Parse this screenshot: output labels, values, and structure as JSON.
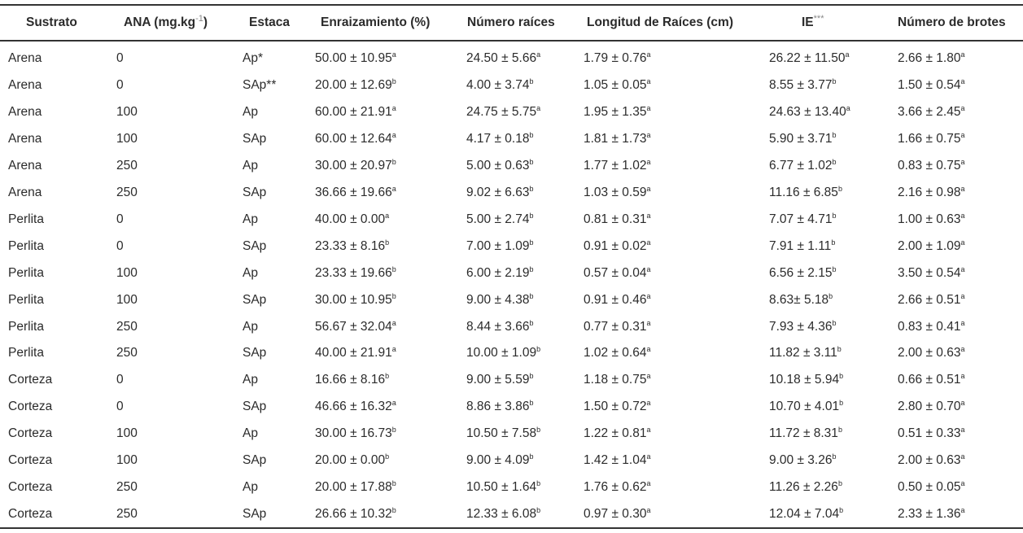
{
  "table": {
    "header": [
      "Sustrato",
      {
        "text": "ANA (mg.kg",
        "sup": "-1",
        "after": ")"
      },
      "Estaca",
      "Enraizamiento (%)",
      "Número raíces",
      "Longitud de Raíces (cm)",
      {
        "text": "IE",
        "sup": "***"
      },
      "Número de brotes"
    ],
    "rows": [
      [
        "Arena",
        "0",
        "Ap*",
        {
          "text": "50.00 ± 10.95",
          "sup": "a"
        },
        {
          "text": "24.50 ± 5.66",
          "sup": "a"
        },
        {
          "text": "1.79 ± 0.76",
          "sup": "a"
        },
        {
          "text": "26.22 ± 11.50",
          "sup": "a"
        },
        {
          "text": "2.66 ± 1.80",
          "sup": "a"
        }
      ],
      [
        "Arena",
        "0",
        "SAp**",
        {
          "text": "20.00 ± 12.69",
          "sup": "b"
        },
        {
          "text": "4.00 ± 3.74",
          "sup": "b"
        },
        {
          "text": "1.05 ± 0.05",
          "sup": "a"
        },
        {
          "text": "8.55 ± 3.77",
          "sup": "b"
        },
        {
          "text": "1.50 ± 0.54",
          "sup": "a"
        }
      ],
      [
        "Arena",
        "100",
        "Ap",
        {
          "text": "60.00 ± 21.91",
          "sup": "a"
        },
        {
          "text": "24.75 ± 5.75",
          "sup": "a"
        },
        {
          "text": "1.95 ± 1.35",
          "sup": "a"
        },
        {
          "text": "24.63 ± 13.40",
          "sup": "a"
        },
        {
          "text": "3.66 ± 2.45",
          "sup": "a"
        }
      ],
      [
        "Arena",
        "100",
        "SAp",
        {
          "text": "60.00 ± 12.64",
          "sup": "a"
        },
        {
          "text": "4.17 ± 0.18",
          "sup": "b"
        },
        {
          "text": "1.81 ± 1.73",
          "sup": "a"
        },
        {
          "text": "5.90 ± 3.71",
          "sup": "b"
        },
        {
          "text": "1.66 ± 0.75",
          "sup": "a"
        }
      ],
      [
        "Arena",
        "250",
        "Ap",
        {
          "text": "30.00 ± 20.97",
          "sup": "b"
        },
        {
          "text": "5.00 ± 0.63",
          "sup": "b"
        },
        {
          "text": "1.77 ± 1.02",
          "sup": "a"
        },
        {
          "text": "6.77 ± 1.02",
          "sup": "b"
        },
        {
          "text": "0.83 ± 0.75",
          "sup": "a"
        }
      ],
      [
        "Arena",
        "250",
        "SAp",
        {
          "text": "36.66 ± 19.66",
          "sup": "a"
        },
        {
          "text": "9.02 ± 6.63",
          "sup": "b"
        },
        {
          "text": "1.03 ± 0.59",
          "sup": "a"
        },
        {
          "text": "11.16 ± 6.85",
          "sup": "b"
        },
        {
          "text": "2.16 ± 0.98",
          "sup": "a"
        }
      ],
      [
        "Perlita",
        "0",
        "Ap",
        {
          "text": "40.00 ± 0.00",
          "sup": "a"
        },
        {
          "text": "5.00 ± 2.74",
          "sup": "b"
        },
        {
          "text": "0.81 ± 0.31",
          "sup": "a"
        },
        {
          "text": "7.07 ± 4.71",
          "sup": "b"
        },
        {
          "text": "1.00 ± 0.63",
          "sup": "a"
        }
      ],
      [
        "Perlita",
        "0",
        "SAp",
        {
          "text": "23.33 ± 8.16",
          "sup": "b"
        },
        {
          "text": "7.00 ± 1.09",
          "sup": "b"
        },
        {
          "text": "0.91 ± 0.02",
          "sup": "a"
        },
        {
          "text": "7.91 ± 1.11",
          "sup": "b"
        },
        {
          "text": "2.00 ± 1.09",
          "sup": "a"
        }
      ],
      [
        "Perlita",
        "100",
        "Ap",
        {
          "text": "23.33 ± 19.66",
          "sup": "b"
        },
        {
          "text": "6.00 ± 2.19",
          "sup": "b"
        },
        {
          "text": "0.57 ± 0.04",
          "sup": "a"
        },
        {
          "text": "6.56 ± 2.15",
          "sup": "b"
        },
        {
          "text": "3.50 ± 0.54",
          "sup": "a"
        }
      ],
      [
        "Perlita",
        "100",
        "SAp",
        {
          "text": "30.00 ± 10.95",
          "sup": "b"
        },
        {
          "text": "9.00 ± 4.38",
          "sup": "b"
        },
        {
          "text": "0.91 ± 0.46",
          "sup": "a"
        },
        {
          "text": "8.63± 5.18",
          "sup": "b"
        },
        {
          "text": "2.66 ± 0.51",
          "sup": "a"
        }
      ],
      [
        "Perlita",
        "250",
        "Ap",
        {
          "text": "56.67 ± 32.04",
          "sup": "a"
        },
        {
          "text": "8.44 ± 3.66",
          "sup": "b"
        },
        {
          "text": "0.77 ± 0.31",
          "sup": "a"
        },
        {
          "text": "7.93 ± 4.36",
          "sup": "b"
        },
        {
          "text": "0.83 ± 0.41",
          "sup": "a"
        }
      ],
      [
        "Perlita",
        "250",
        "SAp",
        {
          "text": "40.00 ± 21.91",
          "sup": "a"
        },
        {
          "text": "10.00 ± 1.09",
          "sup": "b"
        },
        {
          "text": "1.02 ± 0.64",
          "sup": "a"
        },
        {
          "text": "11.82 ± 3.11",
          "sup": "b"
        },
        {
          "text": "2.00 ± 0.63",
          "sup": "a"
        }
      ],
      [
        "Corteza",
        "0",
        "Ap",
        {
          "text": "16.66 ± 8.16",
          "sup": "b"
        },
        {
          "text": "9.00 ± 5.59",
          "sup": "b"
        },
        {
          "text": "1.18 ± 0.75",
          "sup": "a"
        },
        {
          "text": "10.18 ± 5.94",
          "sup": "b"
        },
        {
          "text": "0.66 ± 0.51",
          "sup": "a"
        }
      ],
      [
        "Corteza",
        "0",
        "SAp",
        {
          "text": "46.66 ± 16.32",
          "sup": "a"
        },
        {
          "text": "8.86 ± 3.86",
          "sup": "b"
        },
        {
          "text": "1.50 ± 0.72",
          "sup": "a"
        },
        {
          "text": "10.70 ± 4.01",
          "sup": "b"
        },
        {
          "text": "2.80 ± 0.70",
          "sup": "a"
        }
      ],
      [
        "Corteza",
        "100",
        "Ap",
        {
          "text": "30.00 ± 16.73",
          "sup": "b"
        },
        {
          "text": "10.50 ± 7.58",
          "sup": "b"
        },
        {
          "text": "1.22 ± 0.81",
          "sup": "a"
        },
        {
          "text": "11.72 ± 8.31",
          "sup": "b"
        },
        {
          "text": "0.51 ± 0.33",
          "sup": "a"
        }
      ],
      [
        "Corteza",
        "100",
        "SAp",
        {
          "text": "20.00 ± 0.00",
          "sup": "b"
        },
        {
          "text": "9.00 ± 4.09",
          "sup": "b"
        },
        {
          "text": "1.42 ± 1.04",
          "sup": "a"
        },
        {
          "text": "9.00 ± 3.26",
          "sup": "b"
        },
        {
          "text": "2.00 ± 0.63",
          "sup": "a"
        }
      ],
      [
        "Corteza",
        "250",
        "Ap",
        {
          "text": "20.00 ± 17.88",
          "sup": "b"
        },
        {
          "text": "10.50 ± 1.64",
          "sup": "b"
        },
        {
          "text": "1.76 ± 0.62",
          "sup": "a"
        },
        {
          "text": "11.26 ± 2.26",
          "sup": "b"
        },
        {
          "text": "0.50 ± 0.05",
          "sup": "a"
        }
      ],
      [
        "Corteza",
        "250",
        "SAp",
        {
          "text": "26.66 ± 10.32",
          "sup": "b"
        },
        {
          "text": "12.33 ± 6.08",
          "sup": "b"
        },
        {
          "text": "0.97 ± 0.30",
          "sup": "a"
        },
        {
          "text": "12.04 ± 7.04",
          "sup": "b"
        },
        {
          "text": "2.33 ± 1.36",
          "sup": "a"
        }
      ]
    ]
  }
}
